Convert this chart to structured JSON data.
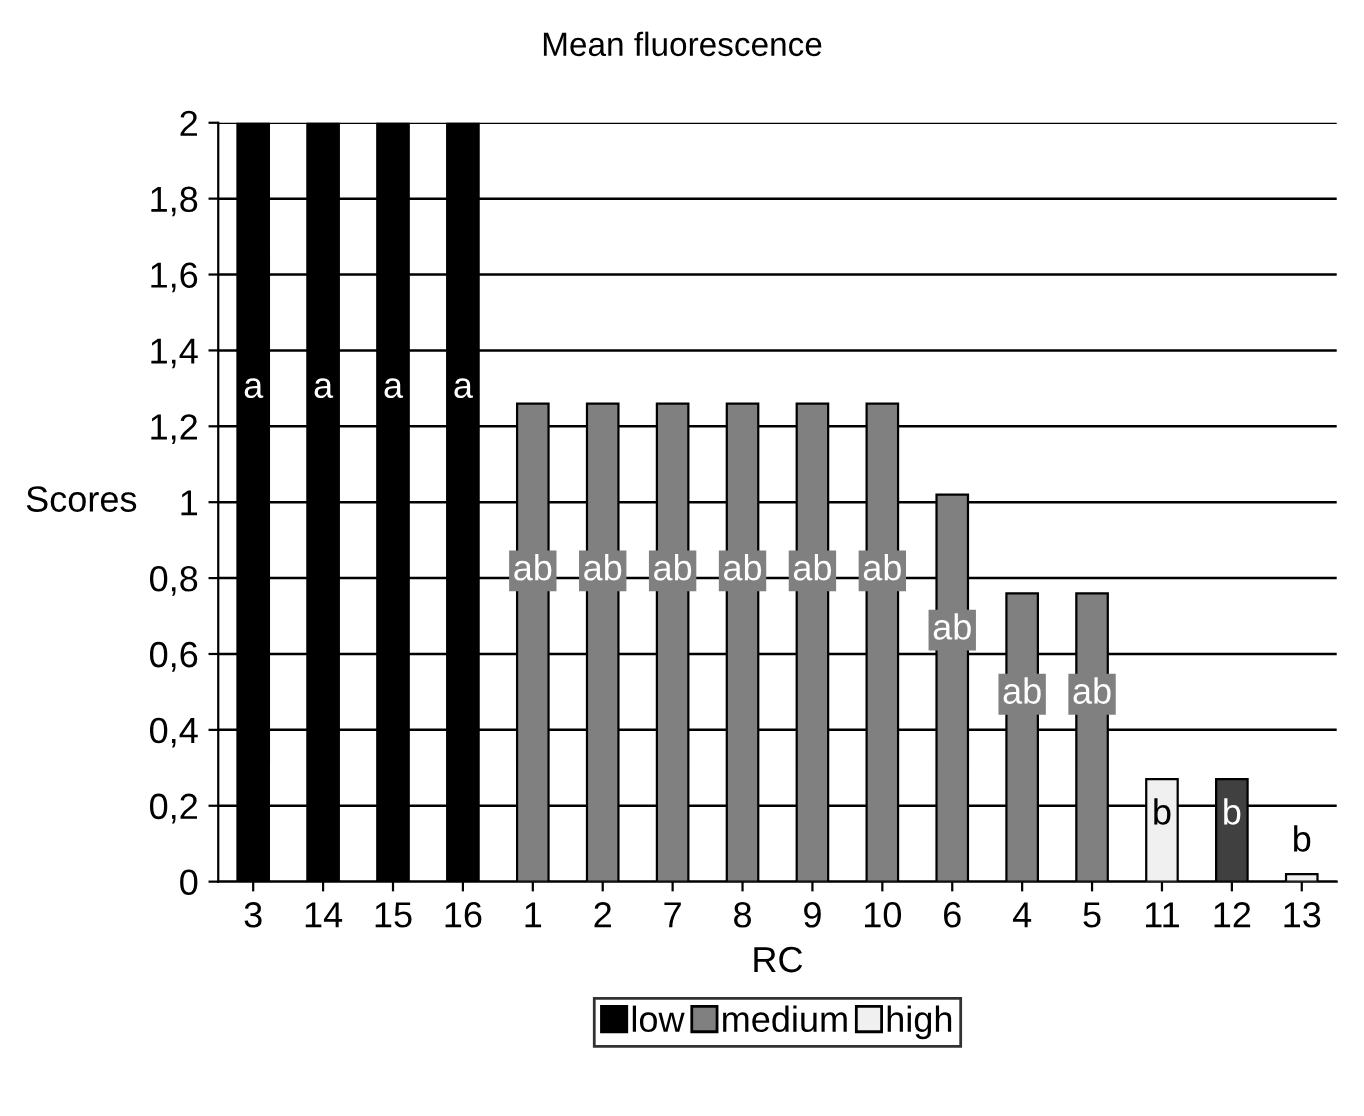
{
  "chart_data": {
    "type": "bar",
    "title": "Mean fluorescence",
    "xlabel": "RC",
    "ylabel": "Scores",
    "categories": [
      "3",
      "14",
      "15",
      "16",
      "1",
      "2",
      "7",
      "8",
      "9",
      "10",
      "6",
      "4",
      "5",
      "11",
      "12",
      "13"
    ],
    "series": [
      {
        "name": "low",
        "color": "#000000",
        "values": [
          2,
          2,
          2,
          2,
          null,
          null,
          null,
          null,
          null,
          null,
          null,
          null,
          null,
          null,
          null,
          null
        ],
        "value_labels": [
          "a",
          "a",
          "a",
          "a",
          null,
          null,
          null,
          null,
          null,
          null,
          null,
          null,
          null,
          null,
          null,
          null
        ]
      },
      {
        "name": "medium",
        "color": "#808080",
        "values": [
          null,
          null,
          null,
          null,
          1.26,
          1.26,
          1.26,
          1.26,
          1.26,
          1.26,
          1.02,
          0.76,
          0.76,
          null,
          null,
          null
        ],
        "value_labels": [
          null,
          null,
          null,
          null,
          "ab",
          "ab",
          "ab",
          "ab",
          "ab",
          "ab",
          "ab",
          "ab",
          "ab",
          null,
          null,
          null
        ]
      },
      {
        "name": "high",
        "color": "#f0f0f0",
        "colors": [
          "#f0f0f0",
          "#f0f0f0",
          "#f0f0f0",
          "#f0f0f0",
          "#f0f0f0",
          "#f0f0f0",
          "#f0f0f0",
          "#f0f0f0",
          "#f0f0f0",
          "#f0f0f0",
          "#f0f0f0",
          "#f0f0f0",
          "#f0f0f0",
          "#f0f0f0",
          "#404040",
          "#f0f0f0"
        ],
        "values": [
          null,
          null,
          null,
          null,
          null,
          null,
          null,
          null,
          null,
          null,
          null,
          null,
          null,
          0.27,
          0.27,
          0.02
        ],
        "value_labels": [
          null,
          null,
          null,
          null,
          null,
          null,
          null,
          null,
          null,
          null,
          null,
          null,
          null,
          "b",
          "b",
          "b"
        ]
      }
    ],
    "ylim": [
      0,
      2
    ],
    "yticks": [
      0,
      {
        "value": 0.2,
        "label": "0,2"
      },
      {
        "value": 0.4,
        "label": "0,4"
      },
      {
        "value": 0.6,
        "label": "0,6"
      },
      {
        "value": 0.8,
        "label": "0,8"
      },
      1,
      {
        "value": 1.2,
        "label": "1,2"
      },
      {
        "value": 1.4,
        "label": "1,4"
      },
      {
        "value": 1.6,
        "label": "1,6"
      },
      {
        "value": 1.8,
        "label": "1,8"
      },
      2
    ],
    "grid": "y",
    "legend": "bottom"
  }
}
